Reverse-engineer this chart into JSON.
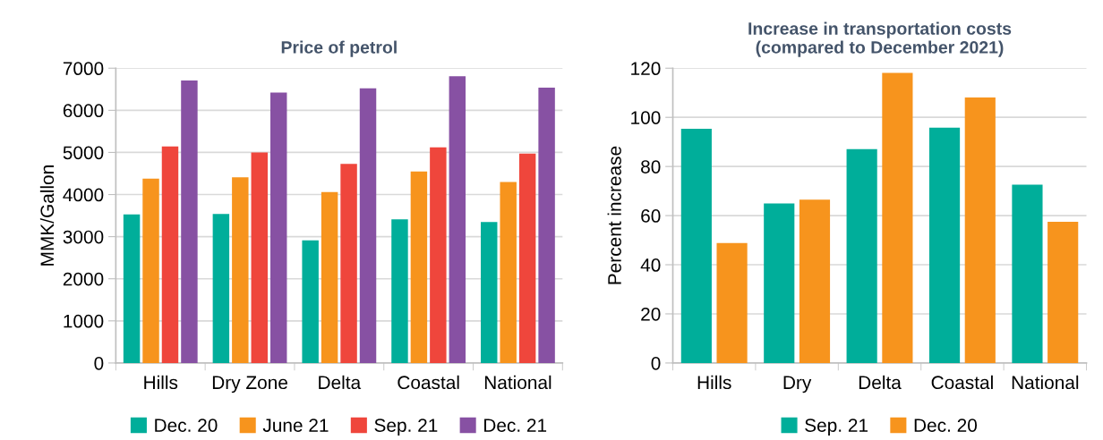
{
  "chart_data": [
    {
      "type": "bar",
      "title": "Price of petrol",
      "ylabel": "MMK/Gallon",
      "categories": [
        "Hills",
        "Dry Zone",
        "Delta",
        "Coastal",
        "National"
      ],
      "series": [
        {
          "name": "Dec. 20",
          "color": "#00ae9a",
          "values": [
            3530,
            3540,
            2910,
            3410,
            3350
          ]
        },
        {
          "name": "June 21",
          "color": "#f7941d",
          "values": [
            4380,
            4410,
            4060,
            4550,
            4300
          ]
        },
        {
          "name": "Sep. 21",
          "color": "#ef463c",
          "values": [
            5140,
            5000,
            4730,
            5120,
            4970
          ]
        },
        {
          "name": "Dec. 21",
          "color": "#8751a3",
          "values": [
            6710,
            6420,
            6520,
            6810,
            6540
          ]
        }
      ],
      "ylim": [
        0,
        7000
      ],
      "yticks": [
        0,
        1000,
        2000,
        3000,
        4000,
        5000,
        6000,
        7000
      ],
      "grid": "y",
      "legend": "bottom"
    },
    {
      "type": "bar",
      "title": "Increase in transportation costs\n(compared to December 2021)",
      "ylabel": "Percent increase",
      "categories": [
        "Hills",
        "Dry",
        "Delta",
        "Coastal",
        "National"
      ],
      "series": [
        {
          "name": "Sep. 21",
          "color": "#00ae9a",
          "values": [
            95.3,
            64.9,
            87.1,
            95.8,
            72.6
          ]
        },
        {
          "name": "Dec. 20",
          "color": "#f7941d",
          "values": [
            48.8,
            66.5,
            118.1,
            108.1,
            57.5
          ]
        }
      ],
      "ylim": [
        0,
        120
      ],
      "yticks": [
        0,
        20,
        40,
        60,
        80,
        100,
        120
      ],
      "grid": "y",
      "legend": "bottom"
    }
  ]
}
